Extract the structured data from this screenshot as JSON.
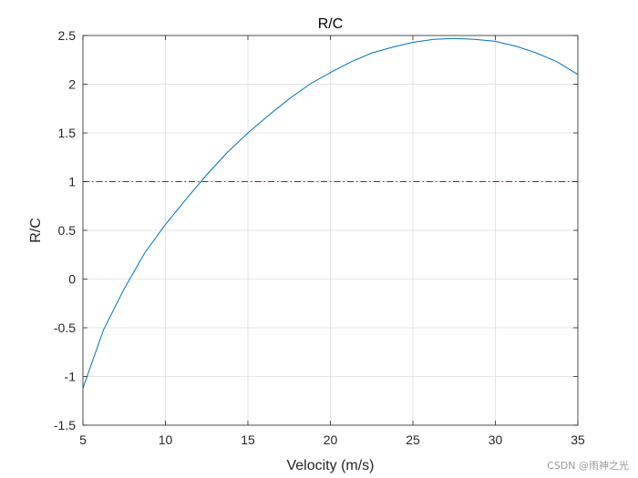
{
  "chart_data": {
    "type": "line",
    "title": "R/C",
    "xlabel": "Velocity (m/s)",
    "ylabel": "R/C",
    "xlim": [
      5,
      35
    ],
    "ylim": [
      -1.5,
      2.5
    ],
    "xticks": [
      "5",
      "10",
      "15",
      "20",
      "25",
      "30",
      "35"
    ],
    "yticks": [
      "-1.5",
      "-1",
      "-0.5",
      "0",
      "0.5",
      "1",
      "1.5",
      "2",
      "2.5"
    ],
    "grid": true,
    "series": [
      {
        "color": "#0072bd",
        "style": "solid",
        "x": [
          5,
          6.25,
          7.5,
          8.75,
          10,
          11.25,
          12.5,
          13.75,
          15,
          16.25,
          17.5,
          18.75,
          20,
          21.25,
          22.5,
          23.75,
          25,
          26.25,
          27.5,
          28.75,
          30,
          31.25,
          32.5,
          33.75,
          35
        ],
        "y": [
          -1.12,
          -0.52,
          -0.1,
          0.27,
          0.56,
          0.82,
          1.07,
          1.3,
          1.5,
          1.68,
          1.85,
          2.0,
          2.12,
          2.23,
          2.32,
          2.38,
          2.43,
          2.46,
          2.47,
          2.46,
          2.44,
          2.39,
          2.32,
          2.23,
          2.1
        ]
      },
      {
        "color": "#a2142f",
        "style": "dashdot",
        "x": [
          5,
          35
        ],
        "y": [
          1,
          1
        ]
      }
    ]
  },
  "watermark": "CSDN @雨神之光"
}
